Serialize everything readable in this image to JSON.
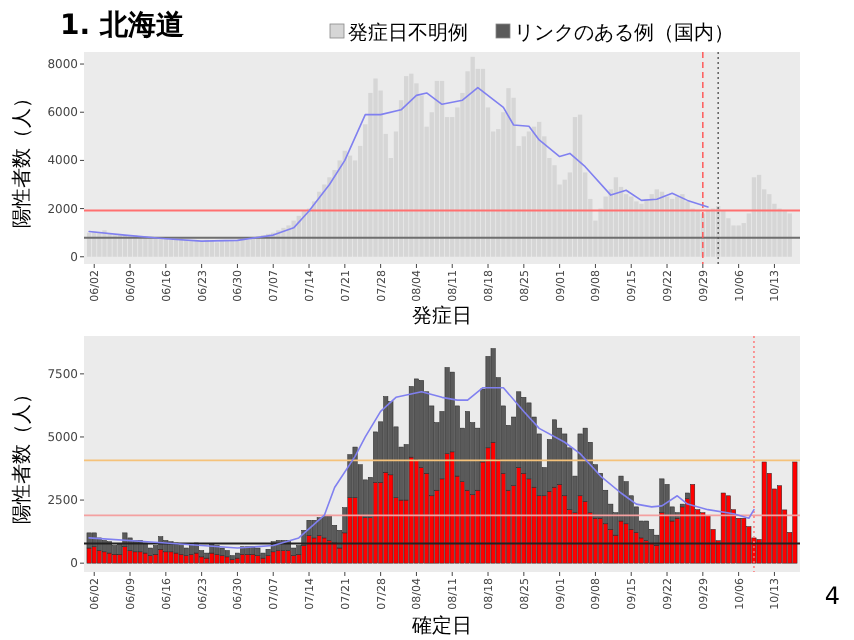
{
  "chart_data": [
    {
      "type": "bar",
      "title": "1. 北海道",
      "xlabel": "発症日",
      "ylabel": "陽性者数（人）",
      "legend": "top",
      "x": [
        "--06-01",
        "--06-02",
        "--06-03",
        "--06-04",
        "--06-05",
        "--06-06",
        "--06-07",
        "--06-08",
        "--06-09",
        "--06-10",
        "--06-11",
        "--06-12",
        "--06-13",
        "--06-14",
        "--06-15",
        "--06-16",
        "--06-17",
        "--06-18",
        "--06-19",
        "--06-20",
        "--06-21",
        "--06-22",
        "--06-23",
        "--06-24",
        "--06-25",
        "--06-26",
        "--06-27",
        "--06-28",
        "--06-29",
        "--06-30",
        "--07-01",
        "--07-02",
        "--07-03",
        "--07-04",
        "--07-05",
        "--07-06",
        "--07-07",
        "--07-08",
        "--07-09",
        "--07-10",
        "--07-11",
        "--07-12",
        "--07-13",
        "--07-14",
        "--07-15",
        "--07-16",
        "--07-17",
        "--07-18",
        "--07-19",
        "--07-20",
        "--07-21",
        "--07-22",
        "--07-23",
        "--07-24",
        "--07-25",
        "--07-26",
        "--07-27",
        "--07-28",
        "--07-29",
        "--07-30",
        "--07-31",
        "--08-01",
        "--08-02",
        "--08-03",
        "--08-04",
        "--08-05",
        "--08-06",
        "--08-07",
        "--08-08",
        "--08-09",
        "--08-10",
        "--08-11",
        "--08-12",
        "--08-13",
        "--08-14",
        "--08-15",
        "--08-16",
        "--08-17",
        "--08-18",
        "--08-19",
        "--08-20",
        "--08-21",
        "--08-22",
        "--08-23",
        "--08-24",
        "--08-25",
        "--08-26",
        "--08-27",
        "--08-28",
        "--08-29",
        "--08-30",
        "--08-31",
        "--09-01",
        "--09-02",
        "--09-03",
        "--09-04",
        "--09-05",
        "--09-06",
        "--09-07",
        "--09-08",
        "--09-09",
        "--09-10",
        "--09-11",
        "--09-12",
        "--09-13",
        "--09-14",
        "--09-15",
        "--09-16",
        "--09-17",
        "--09-18",
        "--09-19",
        "--09-20",
        "--09-21",
        "--09-22",
        "--09-23",
        "--09-24",
        "--09-25",
        "--09-26",
        "--09-27",
        "--09-28",
        "--09-29",
        "--09-30",
        "--10-01",
        "--10-02",
        "--10-03",
        "--10-04",
        "--10-05",
        "--10-06",
        "--10-07",
        "--10-08",
        "--10-09",
        "--10-10",
        "--10-11",
        "--10-12",
        "--10-13",
        "--10-14",
        "--10-15",
        "--10-16"
      ],
      "series": [
        {
          "name": "発症日不明例",
          "color": "#d6d6d6",
          "values": [
            1000,
            1050,
            1000,
            1100,
            950,
            900,
            950,
            900,
            850,
            900,
            800,
            850,
            800,
            750,
            800,
            750,
            700,
            700,
            750,
            700,
            650,
            700,
            650,
            700,
            650,
            600,
            650,
            650,
            700,
            700,
            750,
            700,
            800,
            850,
            900,
            950,
            1000,
            1100,
            1200,
            1300,
            1500,
            1700,
            1900,
            2000,
            2300,
            2700,
            3000,
            3300,
            3600,
            4000,
            4400,
            4200,
            4000,
            4600,
            5500,
            6800,
            7400,
            6900,
            5100,
            4100,
            5200,
            6500,
            7500,
            7600,
            7200,
            6700,
            5400,
            6000,
            7300,
            7300,
            5800,
            5800,
            6200,
            6800,
            7700,
            8300,
            7800,
            7800,
            6200,
            5200,
            5300,
            6000,
            7000,
            6600,
            4600,
            5000,
            5200,
            5400,
            5600,
            5000,
            4100,
            3800,
            3000,
            3200,
            3500,
            5800,
            5900,
            3500,
            2400,
            1500,
            2000,
            2500,
            2800,
            3300,
            2900,
            2600,
            2500,
            2300,
            2200,
            2400,
            2600,
            2800,
            2700,
            2500,
            2400,
            2500,
            2600,
            2300,
            2000,
            1900,
            1800,
            1900,
            2000,
            2100,
            1900,
            1600,
            1300,
            1300,
            1400,
            1800,
            3300,
            3400,
            2800,
            2600,
            2200,
            2000,
            1900,
            1800
          ]
        },
        {
          "type": "line",
          "color": "#8080f0",
          "x": [
            "--06-01",
            "--06-08",
            "--06-16",
            "--06-23",
            "--06-30",
            "--07-07",
            "--07-11",
            "--07-14",
            "--07-18",
            "--07-21",
            "--07-25",
            "--07-28",
            "--08-01",
            "--08-04",
            "--08-06",
            "--08-09",
            "--08-13",
            "--08-16",
            "--08-21",
            "--08-23",
            "--08-26",
            "--08-28",
            "--09-01",
            "--09-03",
            "--09-06",
            "--09-11",
            "--09-14",
            "--09-17",
            "--09-20",
            "--09-23",
            "--09-26",
            "--09-30"
          ],
          "values": [
            1050,
            900,
            750,
            650,
            680,
            900,
            1200,
            1900,
            3000,
            4000,
            5900,
            5900,
            6100,
            6700,
            6800,
            6330,
            6500,
            7020,
            6200,
            5470,
            5420,
            4850,
            4160,
            4290,
            3740,
            2560,
            2760,
            2340,
            2390,
            2640,
            2340,
            2070
          ]
        }
      ],
      "xlim": [
        "--05-31",
        "--10-18"
      ],
      "xticks": [
        {
          "value": "--06-02",
          "label": "06/02"
        },
        {
          "value": "--06-09",
          "label": "06/09"
        },
        {
          "value": "--06-16",
          "label": "06/16"
        },
        {
          "value": "--06-23",
          "label": "06/23"
        },
        {
          "value": "--06-30",
          "label": "06/30"
        },
        {
          "value": "--07-07",
          "label": "07/07"
        },
        {
          "value": "--07-14",
          "label": "07/14"
        },
        {
          "value": "--07-21",
          "label": "07/21"
        },
        {
          "value": "--07-28",
          "label": "07/28"
        },
        {
          "value": "--08-04",
          "label": "08/04"
        },
        {
          "value": "--08-11",
          "label": "08/11"
        },
        {
          "value": "--08-18",
          "label": "08/18"
        },
        {
          "value": "--08-25",
          "label": "08/25"
        },
        {
          "value": "--09-01",
          "label": "09/01"
        },
        {
          "value": "--09-08",
          "label": "09/08"
        },
        {
          "value": "--09-15",
          "label": "09/15"
        },
        {
          "value": "--09-22",
          "label": "09/22"
        },
        {
          "value": "--09-29",
          "label": "09/29"
        },
        {
          "value": "--10-06",
          "label": "10/06"
        },
        {
          "value": "--10-13",
          "label": "10/13"
        }
      ],
      "ylim": [
        -300,
        8500
      ],
      "yticks": [
        0,
        2000,
        4000,
        6000,
        8000
      ],
      "ref_lines": [
        {
          "axis": "y",
          "value": 1920,
          "color": "#ff7070",
          "line_style": "solid"
        },
        {
          "axis": "y",
          "value": 790,
          "color": "#6e6e6e",
          "line_style": "solid"
        },
        {
          "axis": "x",
          "value": "--09-29",
          "color": "#ff5050",
          "line_style": "dashed"
        },
        {
          "axis": "x",
          "value": "--10-02",
          "color": "#555555",
          "line_style": "dotted"
        }
      ]
    },
    {
      "type": "bar",
      "xlabel": "確定日",
      "ylabel": "陽性者数（人）",
      "legend": "top",
      "stacked": true,
      "annotations": [
        "4"
      ],
      "x": [
        "--06-01",
        "--06-02",
        "--06-03",
        "--06-04",
        "--06-05",
        "--06-06",
        "--06-07",
        "--06-08",
        "--06-09",
        "--06-10",
        "--06-11",
        "--06-12",
        "--06-13",
        "--06-14",
        "--06-15",
        "--06-16",
        "--06-17",
        "--06-18",
        "--06-19",
        "--06-20",
        "--06-21",
        "--06-22",
        "--06-23",
        "--06-24",
        "--06-25",
        "--06-26",
        "--06-27",
        "--06-28",
        "--06-29",
        "--06-30",
        "--07-01",
        "--07-02",
        "--07-03",
        "--07-04",
        "--07-05",
        "--07-06",
        "--07-07",
        "--07-08",
        "--07-09",
        "--07-10",
        "--07-11",
        "--07-12",
        "--07-13",
        "--07-14",
        "--07-15",
        "--07-16",
        "--07-17",
        "--07-18",
        "--07-19",
        "--07-20",
        "--07-21",
        "--07-22",
        "--07-23",
        "--07-24",
        "--07-25",
        "--07-26",
        "--07-27",
        "--07-28",
        "--07-29",
        "--07-30",
        "--07-31",
        "--08-01",
        "--08-02",
        "--08-03",
        "--08-04",
        "--08-05",
        "--08-06",
        "--08-07",
        "--08-08",
        "--08-09",
        "--08-10",
        "--08-11",
        "--08-12",
        "--08-13",
        "--08-14",
        "--08-15",
        "--08-16",
        "--08-17",
        "--08-18",
        "--08-19",
        "--08-20",
        "--08-21",
        "--08-22",
        "--08-23",
        "--08-24",
        "--08-25",
        "--08-26",
        "--08-27",
        "--08-28",
        "--08-29",
        "--08-30",
        "--08-31",
        "--09-01",
        "--09-02",
        "--09-03",
        "--09-04",
        "--09-05",
        "--09-06",
        "--09-07",
        "--09-08",
        "--09-09",
        "--09-10",
        "--09-11",
        "--09-12",
        "--09-13",
        "--09-14",
        "--09-15",
        "--09-16",
        "--09-17",
        "--09-18",
        "--09-19",
        "--09-20",
        "--09-21",
        "--09-22",
        "--09-23",
        "--09-24",
        "--09-25",
        "--09-26",
        "--09-27",
        "--09-28",
        "--09-29",
        "--09-30",
        "--10-01",
        "--10-02",
        "--10-03",
        "--10-04",
        "--10-05",
        "--10-06",
        "--10-07",
        "--10-08",
        "--10-09",
        "--10-10",
        "--10-11",
        "--10-12",
        "--10-13",
        "--10-14",
        "--10-15",
        "--10-16",
        "--10-17"
      ],
      "series": [
        {
          "color": "#ff0000",
          "values": [
            600,
            650,
            500,
            450,
            400,
            350,
            350,
            650,
            500,
            450,
            450,
            400,
            300,
            350,
            550,
            450,
            450,
            400,
            350,
            300,
            350,
            400,
            250,
            200,
            400,
            350,
            300,
            250,
            150,
            200,
            350,
            350,
            350,
            300,
            200,
            300,
            450,
            500,
            500,
            500,
            300,
            350,
            700,
            1100,
            1000,
            1100,
            1000,
            900,
            800,
            600,
            1200,
            2600,
            2600,
            1900,
            1800,
            1800,
            3200,
            3200,
            3600,
            3500,
            2600,
            2500,
            2500,
            4200,
            4100,
            3790,
            3560,
            2670,
            2890,
            3340,
            4340,
            4410,
            3450,
            3230,
            2890,
            2710,
            2890,
            4010,
            4570,
            4790,
            4120,
            3560,
            2890,
            3070,
            3790,
            3560,
            3340,
            3010,
            2670,
            2670,
            2850,
            3010,
            3120,
            2670,
            2120,
            2000,
            2670,
            2450,
            2000,
            1780,
            1780,
            1560,
            1340,
            1110,
            1670,
            1560,
            1340,
            1220,
            1000,
            890,
            780,
            710,
            2000,
            1890,
            1670,
            1780,
            2230,
            2560,
            3120,
            2120,
            2000,
            1890,
            1340,
            890,
            2780,
            2670,
            2120,
            1780,
            1780,
            1450,
            1000,
            940,
            4010,
            3560,
            2940,
            3070,
            2110,
            1220,
            4010
          ]
        },
        {
          "name": "リンクのある例（国内）",
          "color": "#5a5a5a",
          "values": [
            600,
            550,
            500,
            450,
            450,
            350,
            400,
            550,
            500,
            450,
            450,
            400,
            300,
            350,
            500,
            450,
            400,
            400,
            350,
            300,
            350,
            400,
            250,
            200,
            350,
            350,
            300,
            250,
            150,
            200,
            300,
            300,
            300,
            300,
            200,
            250,
            400,
            400,
            400,
            400,
            300,
            350,
            600,
            600,
            700,
            700,
            900,
            1000,
            700,
            700,
            1000,
            1700,
            2000,
            2000,
            1500,
            1600,
            2000,
            2400,
            3000,
            2900,
            2800,
            2100,
            2200,
            2800,
            3200,
            3450,
            3230,
            3560,
            2680,
            2670,
            3410,
            3160,
            2780,
            2120,
            3120,
            2860,
            2460,
            2890,
            3620,
            3710,
            3230,
            2670,
            2570,
            2720,
            3000,
            3010,
            3010,
            2780,
            2450,
            1120,
            2050,
            2670,
            2230,
            2450,
            2450,
            1450,
            2450,
            2900,
            2790,
            2120,
            1780,
            1330,
            1000,
            890,
            1780,
            1670,
            1330,
            1010,
            670,
            780,
            560,
            400,
            1340,
            1230,
            560,
            220,
            110,
            220,
            0,
            0,
            0,
            0,
            0,
            0,
            0,
            0,
            0,
            0,
            0,
            0,
            0,
            0,
            0,
            0,
            0,
            0,
            0,
            0,
            0
          ]
        },
        {
          "type": "line",
          "color": "#8080f0",
          "x": [
            "--06-01",
            "--06-16",
            "--06-30",
            "--07-07",
            "--07-12",
            "--07-17",
            "--07-19",
            "--07-23",
            "--07-25",
            "--07-28",
            "--07-31",
            "--08-05",
            "--08-09",
            "--08-12",
            "--08-14",
            "--08-17",
            "--08-21",
            "--08-25",
            "--08-28",
            "--09-02",
            "--09-05",
            "--09-09",
            "--09-13",
            "--09-16",
            "--09-19",
            "--09-21",
            "--09-24",
            "--09-26",
            "--09-30",
            "--10-05",
            "--10-08",
            "--10-09"
          ],
          "values": [
            1000,
            800,
            600,
            700,
            1000,
            1900,
            3000,
            4230,
            5000,
            6010,
            6570,
            6790,
            6570,
            6460,
            6460,
            6950,
            6950,
            6010,
            5340,
            4790,
            4340,
            3450,
            2780,
            2340,
            2230,
            2270,
            2670,
            2340,
            2120,
            1960,
            1780,
            2120
          ]
        }
      ],
      "xlim": [
        "--05-31",
        "--10-18"
      ],
      "xticks": [
        {
          "value": "--06-02",
          "label": "06/02"
        },
        {
          "value": "--06-09",
          "label": "06/09"
        },
        {
          "value": "--06-16",
          "label": "06/16"
        },
        {
          "value": "--06-23",
          "label": "06/23"
        },
        {
          "value": "--06-30",
          "label": "06/30"
        },
        {
          "value": "--07-07",
          "label": "07/07"
        },
        {
          "value": "--07-14",
          "label": "07/14"
        },
        {
          "value": "--07-21",
          "label": "07/21"
        },
        {
          "value": "--07-28",
          "label": "07/28"
        },
        {
          "value": "--08-04",
          "label": "08/04"
        },
        {
          "value": "--08-11",
          "label": "08/11"
        },
        {
          "value": "--08-18",
          "label": "08/18"
        },
        {
          "value": "--08-25",
          "label": "08/25"
        },
        {
          "value": "--09-01",
          "label": "09/01"
        },
        {
          "value": "--09-08",
          "label": "09/08"
        },
        {
          "value": "--09-15",
          "label": "09/15"
        },
        {
          "value": "--09-22",
          "label": "09/22"
        },
        {
          "value": "--09-29",
          "label": "09/29"
        },
        {
          "value": "--10-06",
          "label": "10/06"
        },
        {
          "value": "--10-13",
          "label": "10/13"
        }
      ],
      "ylim": [
        -350,
        9000
      ],
      "yticks": [
        0,
        2500,
        5000,
        7500
      ],
      "ref_lines": [
        {
          "axis": "y",
          "value": 4070,
          "color": "#f5c27a",
          "line_style": "solid"
        },
        {
          "axis": "y",
          "value": 1890,
          "color": "#f4a0a0",
          "line_style": "solid"
        },
        {
          "axis": "y",
          "value": 780,
          "color": "#222222",
          "line_style": "solid"
        },
        {
          "axis": "x",
          "value": "--10-09",
          "color": "#ff7070",
          "line_style": "dotted"
        }
      ]
    }
  ]
}
